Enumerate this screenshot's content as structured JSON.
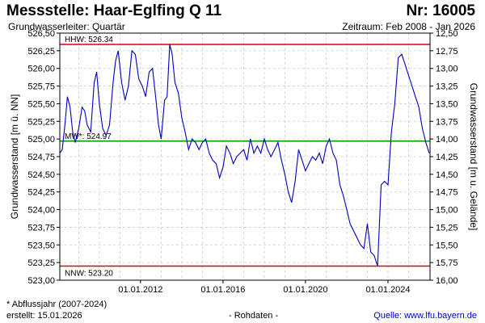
{
  "header": {
    "title": "Messstelle: Haar-Eglfing Q 11",
    "station_number": "Nr: 16005",
    "aquifer": "Grundwasserleiter: Quartär",
    "period": "Zeitraum: Feb 2008 - Jan 2026"
  },
  "footer": {
    "footnote": "* Abflussjahr (2007-2024)",
    "created": "erstellt:  15.01.2026",
    "raw_data": "- Rohdaten -",
    "source": "Quelle: www.lfu.bayern.de"
  },
  "colors": {
    "line": "#0000c0",
    "hhw": "#dd0000",
    "nnw": "#dd0000",
    "mw": "#009900",
    "grid": "#cccccc"
  },
  "chart_data": {
    "type": "line",
    "grid": true,
    "x_axis": {
      "range": [
        "2008-02",
        "2026-01"
      ],
      "ticks": [
        {
          "date": "2012-01-01",
          "label": "01.01.2012"
        },
        {
          "date": "2016-01-01",
          "label": "01.01.2016"
        },
        {
          "date": "2020-01-01",
          "label": "01.01.2020"
        },
        {
          "date": "2024-01-01",
          "label": "01.01.2024"
        }
      ]
    },
    "y_left": {
      "label": "Grundwasserstand [m ü. NN]",
      "ylim": [
        523.0,
        526.5
      ],
      "ticks": [
        {
          "value": 523.0,
          "label": "523,00"
        },
        {
          "value": 523.25,
          "label": "523,25"
        },
        {
          "value": 523.5,
          "label": "523,50"
        },
        {
          "value": 523.75,
          "label": "523,75"
        },
        {
          "value": 524.0,
          "label": "524,00"
        },
        {
          "value": 524.25,
          "label": "524,25"
        },
        {
          "value": 524.5,
          "label": "524,50"
        },
        {
          "value": 524.75,
          "label": "524,75"
        },
        {
          "value": 525.0,
          "label": "525,00"
        },
        {
          "value": 525.25,
          "label": "525,25"
        },
        {
          "value": 525.5,
          "label": "525,50"
        },
        {
          "value": 525.75,
          "label": "525,75"
        },
        {
          "value": 526.0,
          "label": "526,00"
        },
        {
          "value": 526.25,
          "label": "526,25"
        },
        {
          "value": 526.5,
          "label": "526,50"
        }
      ]
    },
    "y_right": {
      "label": "Grundwasserstand [m u. Gelände]",
      "ticks": [
        {
          "value": 526.5,
          "label": "12,50"
        },
        {
          "value": 526.25,
          "label": "12,75"
        },
        {
          "value": 526.0,
          "label": "13,00"
        },
        {
          "value": 525.75,
          "label": "13,25"
        },
        {
          "value": 525.5,
          "label": "13,50"
        },
        {
          "value": 525.25,
          "label": "13,75"
        },
        {
          "value": 525.0,
          "label": "14,00"
        },
        {
          "value": 524.75,
          "label": "14,25"
        },
        {
          "value": 524.5,
          "label": "14,50"
        },
        {
          "value": 524.25,
          "label": "14,75"
        },
        {
          "value": 524.0,
          "label": "15,00"
        },
        {
          "value": 523.75,
          "label": "15,25"
        },
        {
          "value": 523.5,
          "label": "15,50"
        },
        {
          "value": 523.25,
          "label": "15,75"
        },
        {
          "value": 523.0,
          "label": "16,00"
        }
      ]
    },
    "reference_lines": [
      {
        "name": "HHW",
        "value": 526.34,
        "label": "HHW: 526.34",
        "color": "#dd0000"
      },
      {
        "name": "MW",
        "value": 524.97,
        "label": "MW*: 524.97",
        "color": "#009900"
      },
      {
        "name": "NNW",
        "value": 523.2,
        "label": "NNW: 523.20",
        "color": "#dd0000"
      }
    ],
    "series": [
      {
        "color": "#0000c0",
        "points": [
          [
            "2008-02-01",
            524.8
          ],
          [
            "2008-03-15",
            524.85
          ],
          [
            "2008-05-01",
            525.2
          ],
          [
            "2008-06-15",
            525.6
          ],
          [
            "2008-08-01",
            525.45
          ],
          [
            "2008-09-15",
            525.1
          ],
          [
            "2008-11-01",
            524.95
          ],
          [
            "2009-01-01",
            525.15
          ],
          [
            "2009-03-01",
            525.45
          ],
          [
            "2009-04-15",
            525.4
          ],
          [
            "2009-06-01",
            525.2
          ],
          [
            "2009-08-01",
            525.1
          ],
          [
            "2009-10-01",
            525.8
          ],
          [
            "2009-11-15",
            525.95
          ],
          [
            "2010-01-01",
            525.5
          ],
          [
            "2010-03-01",
            525.15
          ],
          [
            "2010-05-01",
            525.05
          ],
          [
            "2010-07-01",
            525.2
          ],
          [
            "2010-09-01",
            525.8
          ],
          [
            "2010-10-15",
            526.1
          ],
          [
            "2010-12-01",
            526.25
          ],
          [
            "2011-02-01",
            525.8
          ],
          [
            "2011-04-01",
            525.55
          ],
          [
            "2011-06-01",
            525.75
          ],
          [
            "2011-08-01",
            526.25
          ],
          [
            "2011-10-01",
            526.2
          ],
          [
            "2011-12-01",
            525.85
          ],
          [
            "2012-02-01",
            525.75
          ],
          [
            "2012-04-01",
            525.6
          ],
          [
            "2012-06-01",
            525.95
          ],
          [
            "2012-08-01",
            526.0
          ],
          [
            "2012-10-01",
            525.55
          ],
          [
            "2012-11-15",
            525.2
          ],
          [
            "2013-01-01",
            525.0
          ],
          [
            "2013-03-01",
            525.55
          ],
          [
            "2013-04-15",
            525.6
          ],
          [
            "2013-06-01",
            526.34
          ],
          [
            "2013-07-15",
            526.2
          ],
          [
            "2013-09-01",
            525.8
          ],
          [
            "2013-11-01",
            525.65
          ],
          [
            "2014-01-01",
            525.3
          ],
          [
            "2014-03-01",
            525.1
          ],
          [
            "2014-05-01",
            524.85
          ],
          [
            "2014-07-01",
            525.0
          ],
          [
            "2014-09-01",
            524.95
          ],
          [
            "2014-11-01",
            524.85
          ],
          [
            "2015-01-01",
            524.95
          ],
          [
            "2015-03-01",
            525.0
          ],
          [
            "2015-05-01",
            524.8
          ],
          [
            "2015-07-01",
            524.7
          ],
          [
            "2015-09-01",
            524.65
          ],
          [
            "2015-11-01",
            524.45
          ],
          [
            "2016-01-01",
            524.6
          ],
          [
            "2016-03-01",
            524.9
          ],
          [
            "2016-05-01",
            524.8
          ],
          [
            "2016-07-01",
            524.65
          ],
          [
            "2016-09-01",
            524.75
          ],
          [
            "2016-11-01",
            524.8
          ],
          [
            "2017-01-01",
            524.85
          ],
          [
            "2017-03-01",
            524.7
          ],
          [
            "2017-05-01",
            525.0
          ],
          [
            "2017-07-01",
            524.8
          ],
          [
            "2017-09-01",
            524.9
          ],
          [
            "2017-11-01",
            524.8
          ],
          [
            "2018-01-01",
            525.0
          ],
          [
            "2018-03-01",
            524.85
          ],
          [
            "2018-05-01",
            524.75
          ],
          [
            "2018-07-01",
            524.85
          ],
          [
            "2018-09-01",
            524.95
          ],
          [
            "2018-11-01",
            524.7
          ],
          [
            "2019-01-01",
            524.5
          ],
          [
            "2019-03-01",
            524.25
          ],
          [
            "2019-05-01",
            524.1
          ],
          [
            "2019-07-01",
            524.4
          ],
          [
            "2019-09-01",
            524.85
          ],
          [
            "2019-11-01",
            524.7
          ],
          [
            "2020-01-01",
            524.55
          ],
          [
            "2020-03-01",
            524.65
          ],
          [
            "2020-05-01",
            524.75
          ],
          [
            "2020-07-01",
            524.7
          ],
          [
            "2020-09-01",
            524.8
          ],
          [
            "2020-11-01",
            524.65
          ],
          [
            "2021-01-01",
            524.9
          ],
          [
            "2021-03-01",
            525.0
          ],
          [
            "2021-05-01",
            524.8
          ],
          [
            "2021-07-01",
            524.7
          ],
          [
            "2021-09-01",
            524.35
          ],
          [
            "2021-11-01",
            524.2
          ],
          [
            "2022-01-01",
            524.0
          ],
          [
            "2022-03-01",
            523.8
          ],
          [
            "2022-05-01",
            523.7
          ],
          [
            "2022-07-01",
            523.6
          ],
          [
            "2022-09-01",
            523.5
          ],
          [
            "2022-11-01",
            523.45
          ],
          [
            "2023-01-01",
            523.8
          ],
          [
            "2023-03-01",
            523.4
          ],
          [
            "2023-05-01",
            523.35
          ],
          [
            "2023-07-01",
            523.2
          ],
          [
            "2023-09-01",
            524.35
          ],
          [
            "2023-11-01",
            524.4
          ],
          [
            "2024-01-01",
            524.35
          ],
          [
            "2024-03-01",
            525.1
          ],
          [
            "2024-05-01",
            525.5
          ],
          [
            "2024-07-01",
            526.15
          ],
          [
            "2024-09-01",
            526.2
          ],
          [
            "2024-11-01",
            526.05
          ],
          [
            "2025-01-01",
            525.9
          ],
          [
            "2025-03-01",
            525.75
          ],
          [
            "2025-05-01",
            525.6
          ],
          [
            "2025-07-01",
            525.45
          ],
          [
            "2025-09-01",
            525.15
          ],
          [
            "2025-11-01",
            524.95
          ],
          [
            "2026-01-01",
            524.8
          ]
        ]
      }
    ]
  }
}
